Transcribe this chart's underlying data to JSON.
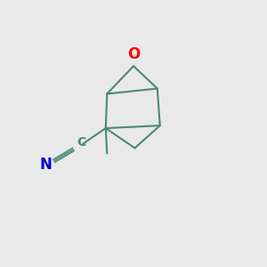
{
  "background_color": "#e9e9e9",
  "bond_color": "#4a8878",
  "oxygen_color": "#ff0000",
  "nitrogen_color": "#0000dd",
  "carbon_label_color": "#4a8878",
  "figsize": [
    3.0,
    3.0
  ],
  "dpi": 100,
  "O_label": "O",
  "nitrile_C_label": "C",
  "nitrile_N_label": "N"
}
